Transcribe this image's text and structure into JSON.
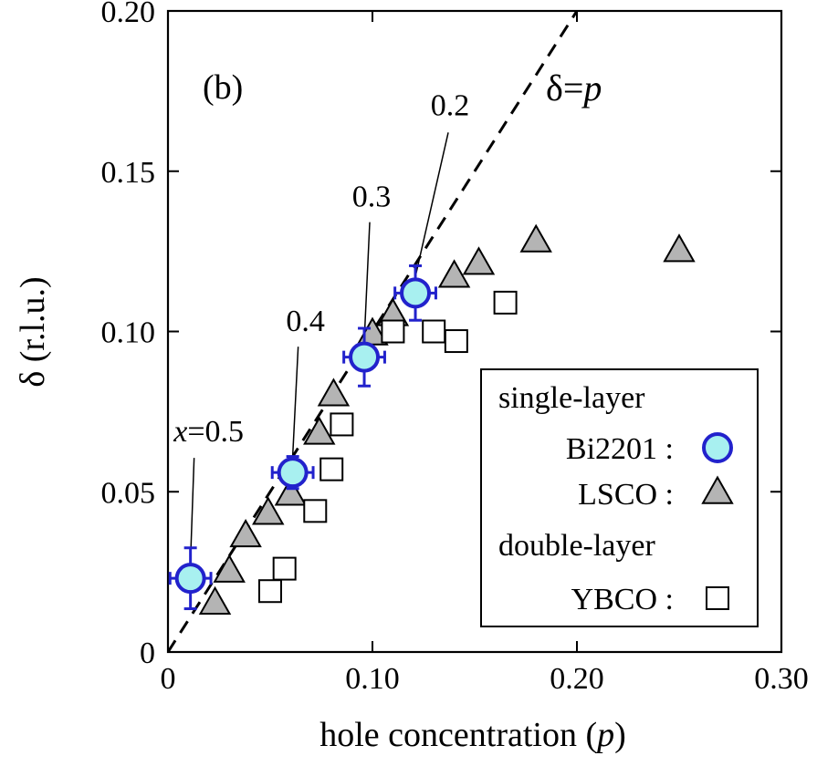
{
  "chart_data": {
    "type": "scatter",
    "panel_label": "(b)",
    "xlabel": "hole concentration (",
    "xlabel_var": "p",
    "xlabel_close": ")",
    "ylabel": "δ (r.l.u.)",
    "xlim": [
      0,
      0.3
    ],
    "ylim": [
      0,
      0.2
    ],
    "x_ticks": [
      {
        "value": 0,
        "label": "0"
      },
      {
        "value": 0.1,
        "label": "0.10"
      },
      {
        "value": 0.2,
        "label": "0.20"
      },
      {
        "value": 0.3,
        "label": "0.30"
      }
    ],
    "y_ticks": [
      {
        "value": 0,
        "label": "0"
      },
      {
        "value": 0.05,
        "label": "0.05"
      },
      {
        "value": 0.1,
        "label": "0.10"
      },
      {
        "value": 0.15,
        "label": "0.15"
      },
      {
        "value": 0.2,
        "label": "0.20"
      }
    ],
    "grid": false,
    "reference_line": {
      "label_prefix": "δ=",
      "label_var": "p",
      "x": [
        0,
        0.2
      ],
      "y": [
        0,
        0.2
      ],
      "style": "dashed"
    },
    "series": [
      {
        "name": "Bi2201",
        "marker": "circle",
        "color": "#a8f0f0",
        "edge": "#2222cc",
        "points": [
          {
            "x": 0.011,
            "y": 0.023,
            "yerr": 0.0095,
            "xerr": 0.01,
            "label_prefix": "x",
            "label": "=0.5"
          },
          {
            "x": 0.061,
            "y": 0.056,
            "yerr": 0.005,
            "xerr": 0.01,
            "label": "0.4"
          },
          {
            "x": 0.096,
            "y": 0.092,
            "yerr": 0.009,
            "xerr": 0.01,
            "label": "0.3"
          },
          {
            "x": 0.121,
            "y": 0.112,
            "yerr": 0.0085,
            "xerr": 0.01,
            "label": "0.2"
          }
        ]
      },
      {
        "name": "LSCO",
        "marker": "triangle",
        "color": "#b4b4b4",
        "edge": "#000000",
        "points": [
          {
            "x": 0.023,
            "y": 0.015
          },
          {
            "x": 0.03,
            "y": 0.025
          },
          {
            "x": 0.038,
            "y": 0.036
          },
          {
            "x": 0.049,
            "y": 0.043
          },
          {
            "x": 0.06,
            "y": 0.049
          },
          {
            "x": 0.074,
            "y": 0.068
          },
          {
            "x": 0.081,
            "y": 0.08
          },
          {
            "x": 0.1,
            "y": 0.099
          },
          {
            "x": 0.11,
            "y": 0.105
          },
          {
            "x": 0.14,
            "y": 0.117
          },
          {
            "x": 0.152,
            "y": 0.121
          },
          {
            "x": 0.18,
            "y": 0.128
          },
          {
            "x": 0.25,
            "y": 0.125
          }
        ]
      },
      {
        "name": "YBCO",
        "marker": "square",
        "color": "#ffffff",
        "edge": "#000000",
        "points": [
          {
            "x": 0.05,
            "y": 0.019
          },
          {
            "x": 0.057,
            "y": 0.026
          },
          {
            "x": 0.072,
            "y": 0.044
          },
          {
            "x": 0.08,
            "y": 0.057
          },
          {
            "x": 0.085,
            "y": 0.071
          },
          {
            "x": 0.11,
            "y": 0.1
          },
          {
            "x": 0.13,
            "y": 0.1
          },
          {
            "x": 0.141,
            "y": 0.097
          },
          {
            "x": 0.165,
            "y": 0.109
          }
        ]
      }
    ],
    "legend": {
      "placement": "bottom-right",
      "groups": [
        {
          "heading": "single-layer",
          "entries": [
            {
              "label": "Bi2201 :",
              "series": 0
            },
            {
              "label": "LSCO :",
              "series": 1
            }
          ]
        },
        {
          "heading": "double-layer",
          "entries": [
            {
              "label": "YBCO :",
              "series": 2
            }
          ]
        }
      ]
    }
  }
}
